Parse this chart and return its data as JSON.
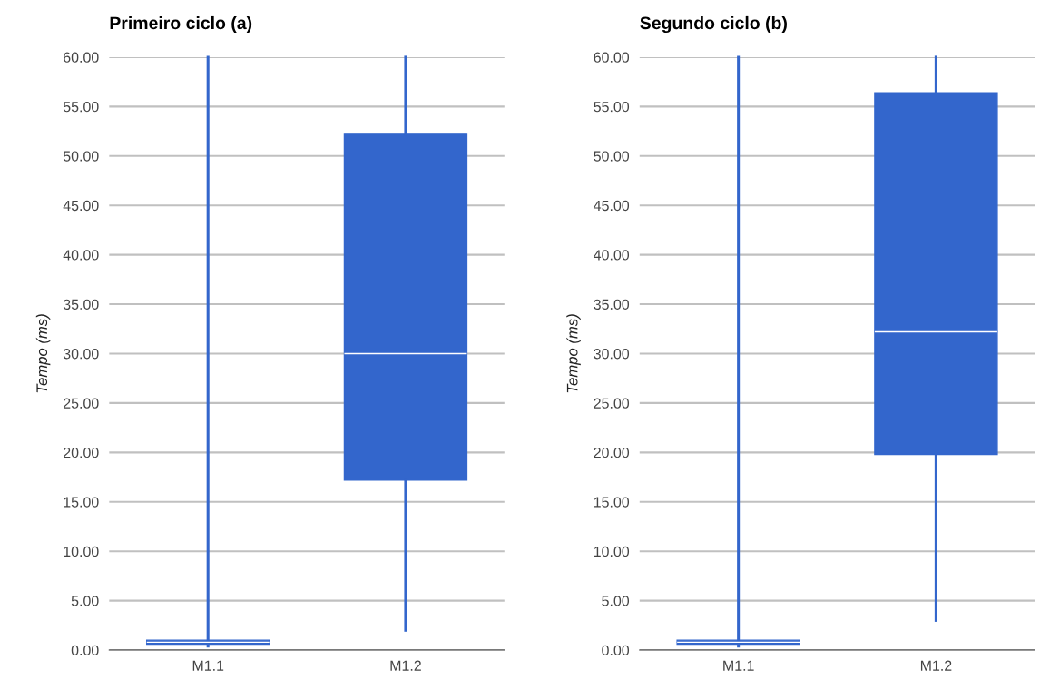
{
  "chart_data": [
    {
      "type": "box",
      "title": "Primeiro ciclo (a)",
      "ylabel": "Tempo (ms)",
      "categories": [
        "M1.1",
        "M1.2"
      ],
      "color": "#3366cc",
      "boxes": [
        {
          "low": 0.4,
          "q1": 0.6,
          "median": 0.8,
          "q3": 1.0,
          "high": 60
        },
        {
          "low": 2.0,
          "q1": 17.2,
          "median": 30.0,
          "q3": 52.2,
          "high": 60
        }
      ],
      "ylim": [
        0,
        60
      ],
      "yticks": [
        {
          "value": 0,
          "label": "0.00"
        },
        {
          "value": 5,
          "label": "5.00"
        },
        {
          "value": 10,
          "label": "10.00"
        },
        {
          "value": 15,
          "label": "15.00"
        },
        {
          "value": 20,
          "label": "20.00"
        },
        {
          "value": 25,
          "label": "25.00"
        },
        {
          "value": 30,
          "label": "30.00"
        },
        {
          "value": 35,
          "label": "35.00"
        },
        {
          "value": 40,
          "label": "40.00"
        },
        {
          "value": 45,
          "label": "45.00"
        },
        {
          "value": 50,
          "label": "50.00"
        },
        {
          "value": 55,
          "label": "55.00"
        },
        {
          "value": 60,
          "label": "60.00"
        }
      ],
      "grid": "y"
    },
    {
      "type": "box",
      "title": "Segundo ciclo (b)",
      "ylabel": "Tempo (ms)",
      "categories": [
        "M1.1",
        "M1.2"
      ],
      "color": "#3366cc",
      "boxes": [
        {
          "low": 0.4,
          "q1": 0.6,
          "median": 0.8,
          "q3": 1.0,
          "high": 60
        },
        {
          "low": 3.0,
          "q1": 19.8,
          "median": 32.2,
          "q3": 56.4,
          "high": 60
        }
      ],
      "ylim": [
        0,
        60
      ],
      "yticks": [
        {
          "value": 0,
          "label": "0.00"
        },
        {
          "value": 5,
          "label": "5.00"
        },
        {
          "value": 10,
          "label": "10.00"
        },
        {
          "value": 15,
          "label": "15.00"
        },
        {
          "value": 20,
          "label": "20.00"
        },
        {
          "value": 25,
          "label": "25.00"
        },
        {
          "value": 30,
          "label": "30.00"
        },
        {
          "value": 35,
          "label": "35.00"
        },
        {
          "value": 40,
          "label": "40.00"
        },
        {
          "value": 45,
          "label": "45.00"
        },
        {
          "value": 50,
          "label": "50.00"
        },
        {
          "value": 55,
          "label": "55.00"
        },
        {
          "value": 60,
          "label": "60.00"
        }
      ],
      "grid": "y"
    }
  ]
}
